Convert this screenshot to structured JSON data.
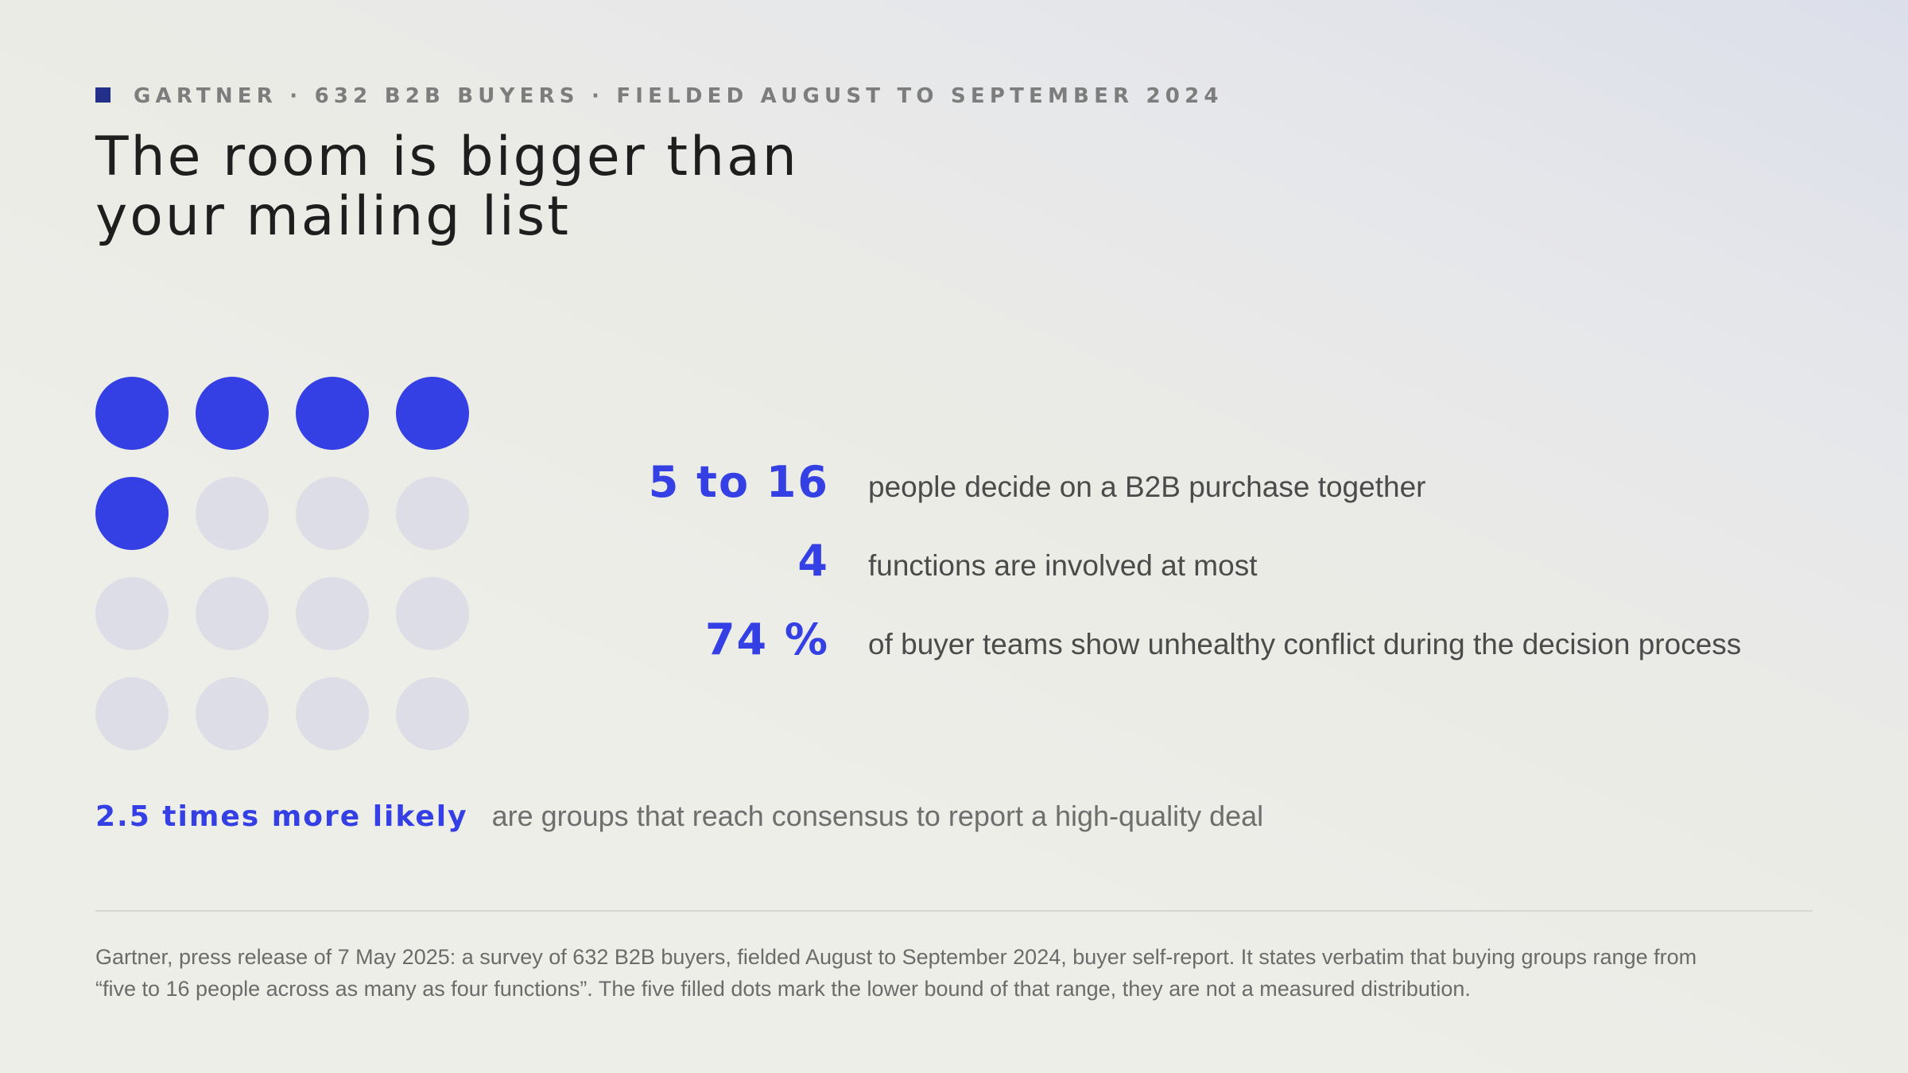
{
  "colors": {
    "accent": "#3440e4",
    "dot_inactive": "#dcdde6",
    "eyebrow_square": "#22308a",
    "title": "#1e1e1e"
  },
  "eyebrow": {
    "icon": "square-marker-icon",
    "text": "GARTNER · 632 B2B BUYERS · FIELDED AUGUST TO SEPTEMBER 2024"
  },
  "title": {
    "line1": "The room is bigger than",
    "line2": "your mailing list"
  },
  "dot_grid": {
    "total": 16,
    "filled": 5
  },
  "stats": [
    {
      "value": "5 to 16",
      "text": "people decide on a B2B purchase together"
    },
    {
      "value": "4",
      "text": "functions are involved at most"
    },
    {
      "value": "74 %",
      "text": "of buyer teams show unhealthy conflict during the decision process"
    }
  ],
  "highlight": {
    "value": "2.5 times more likely",
    "text": "are groups that reach consensus to report a high-quality deal"
  },
  "footnote": {
    "line1": "Gartner, press release of 7 May 2025: a survey of 632 B2B buyers, fielded August to September 2024, buyer self-report. It states verbatim that buying groups range from",
    "line2": "“five to 16 people across as many as four functions”. The five filled dots mark the lower bound of that range, they are not a measured distribution."
  }
}
